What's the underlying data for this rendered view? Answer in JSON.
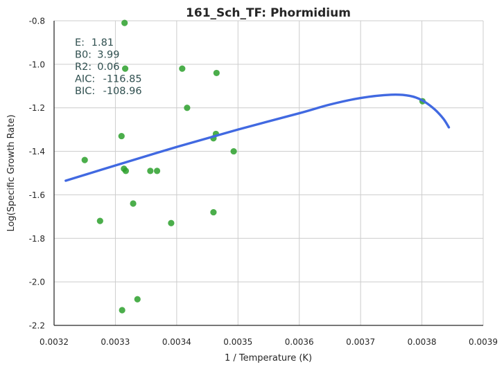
{
  "chart_data": {
    "type": "scatter",
    "title": "161_Sch_TF: Phormidium",
    "xlabel": "1 / Temperature (K)",
    "ylabel": "Log(Specific Growth Rate)",
    "xlim": [
      0.0032,
      0.0039
    ],
    "ylim": [
      -2.2,
      -0.8
    ],
    "grid": true,
    "xticks": [
      "0.0032",
      "0.0033",
      "0.0034",
      "0.0035",
      "0.0036",
      "0.0037",
      "0.0038",
      "0.0039"
    ],
    "yticks": [
      "-2.2",
      "-2.0",
      "-1.8",
      "-1.6",
      "-1.4",
      "-1.2",
      "-1.0",
      "-0.8"
    ],
    "stats": [
      {
        "key": "E:",
        "value": "1.81"
      },
      {
        "key": "B0:",
        "value": "3.99"
      },
      {
        "key": "R2:",
        "value": "0.06"
      },
      {
        "key": "AIC:",
        "value": "-116.85"
      },
      {
        "key": "BIC:",
        "value": "-108.96"
      }
    ],
    "colors": {
      "points": "#2ca02c",
      "fit": "#4169e1"
    },
    "points": [
      {
        "x": 0.003315,
        "y": -0.81
      },
      {
        "x": 0.003316,
        "y": -1.02
      },
      {
        "x": 0.003409,
        "y": -1.02
      },
      {
        "x": 0.003465,
        "y": -1.04
      },
      {
        "x": 0.003417,
        "y": -1.2
      },
      {
        "x": 0.00331,
        "y": -1.33
      },
      {
        "x": 0.003464,
        "y": -1.32
      },
      {
        "x": 0.00346,
        "y": -1.34
      },
      {
        "x": 0.003493,
        "y": -1.4
      },
      {
        "x": 0.00325,
        "y": -1.44
      },
      {
        "x": 0.003314,
        "y": -1.48
      },
      {
        "x": 0.003317,
        "y": -1.49
      },
      {
        "x": 0.003357,
        "y": -1.49
      },
      {
        "x": 0.003368,
        "y": -1.49
      },
      {
        "x": 0.003329,
        "y": -1.64
      },
      {
        "x": 0.00346,
        "y": -1.68
      },
      {
        "x": 0.003275,
        "y": -1.72
      },
      {
        "x": 0.003391,
        "y": -1.73
      },
      {
        "x": 0.003336,
        "y": -2.08
      },
      {
        "x": 0.003311,
        "y": -2.13
      },
      {
        "x": 0.003801,
        "y": -1.17
      }
    ],
    "fit_line": [
      {
        "x": 0.003219,
        "y": -1.535
      },
      {
        "x": 0.0033,
        "y": -1.465
      },
      {
        "x": 0.0034,
        "y": -1.38
      },
      {
        "x": 0.0035,
        "y": -1.3
      },
      {
        "x": 0.0036,
        "y": -1.225
      },
      {
        "x": 0.00365,
        "y": -1.185
      },
      {
        "x": 0.0037,
        "y": -1.155
      },
      {
        "x": 0.00375,
        "y": -1.14
      },
      {
        "x": 0.00378,
        "y": -1.145
      },
      {
        "x": 0.0038,
        "y": -1.165
      },
      {
        "x": 0.00382,
        "y": -1.205
      },
      {
        "x": 0.003835,
        "y": -1.25
      },
      {
        "x": 0.003844,
        "y": -1.29
      }
    ]
  }
}
